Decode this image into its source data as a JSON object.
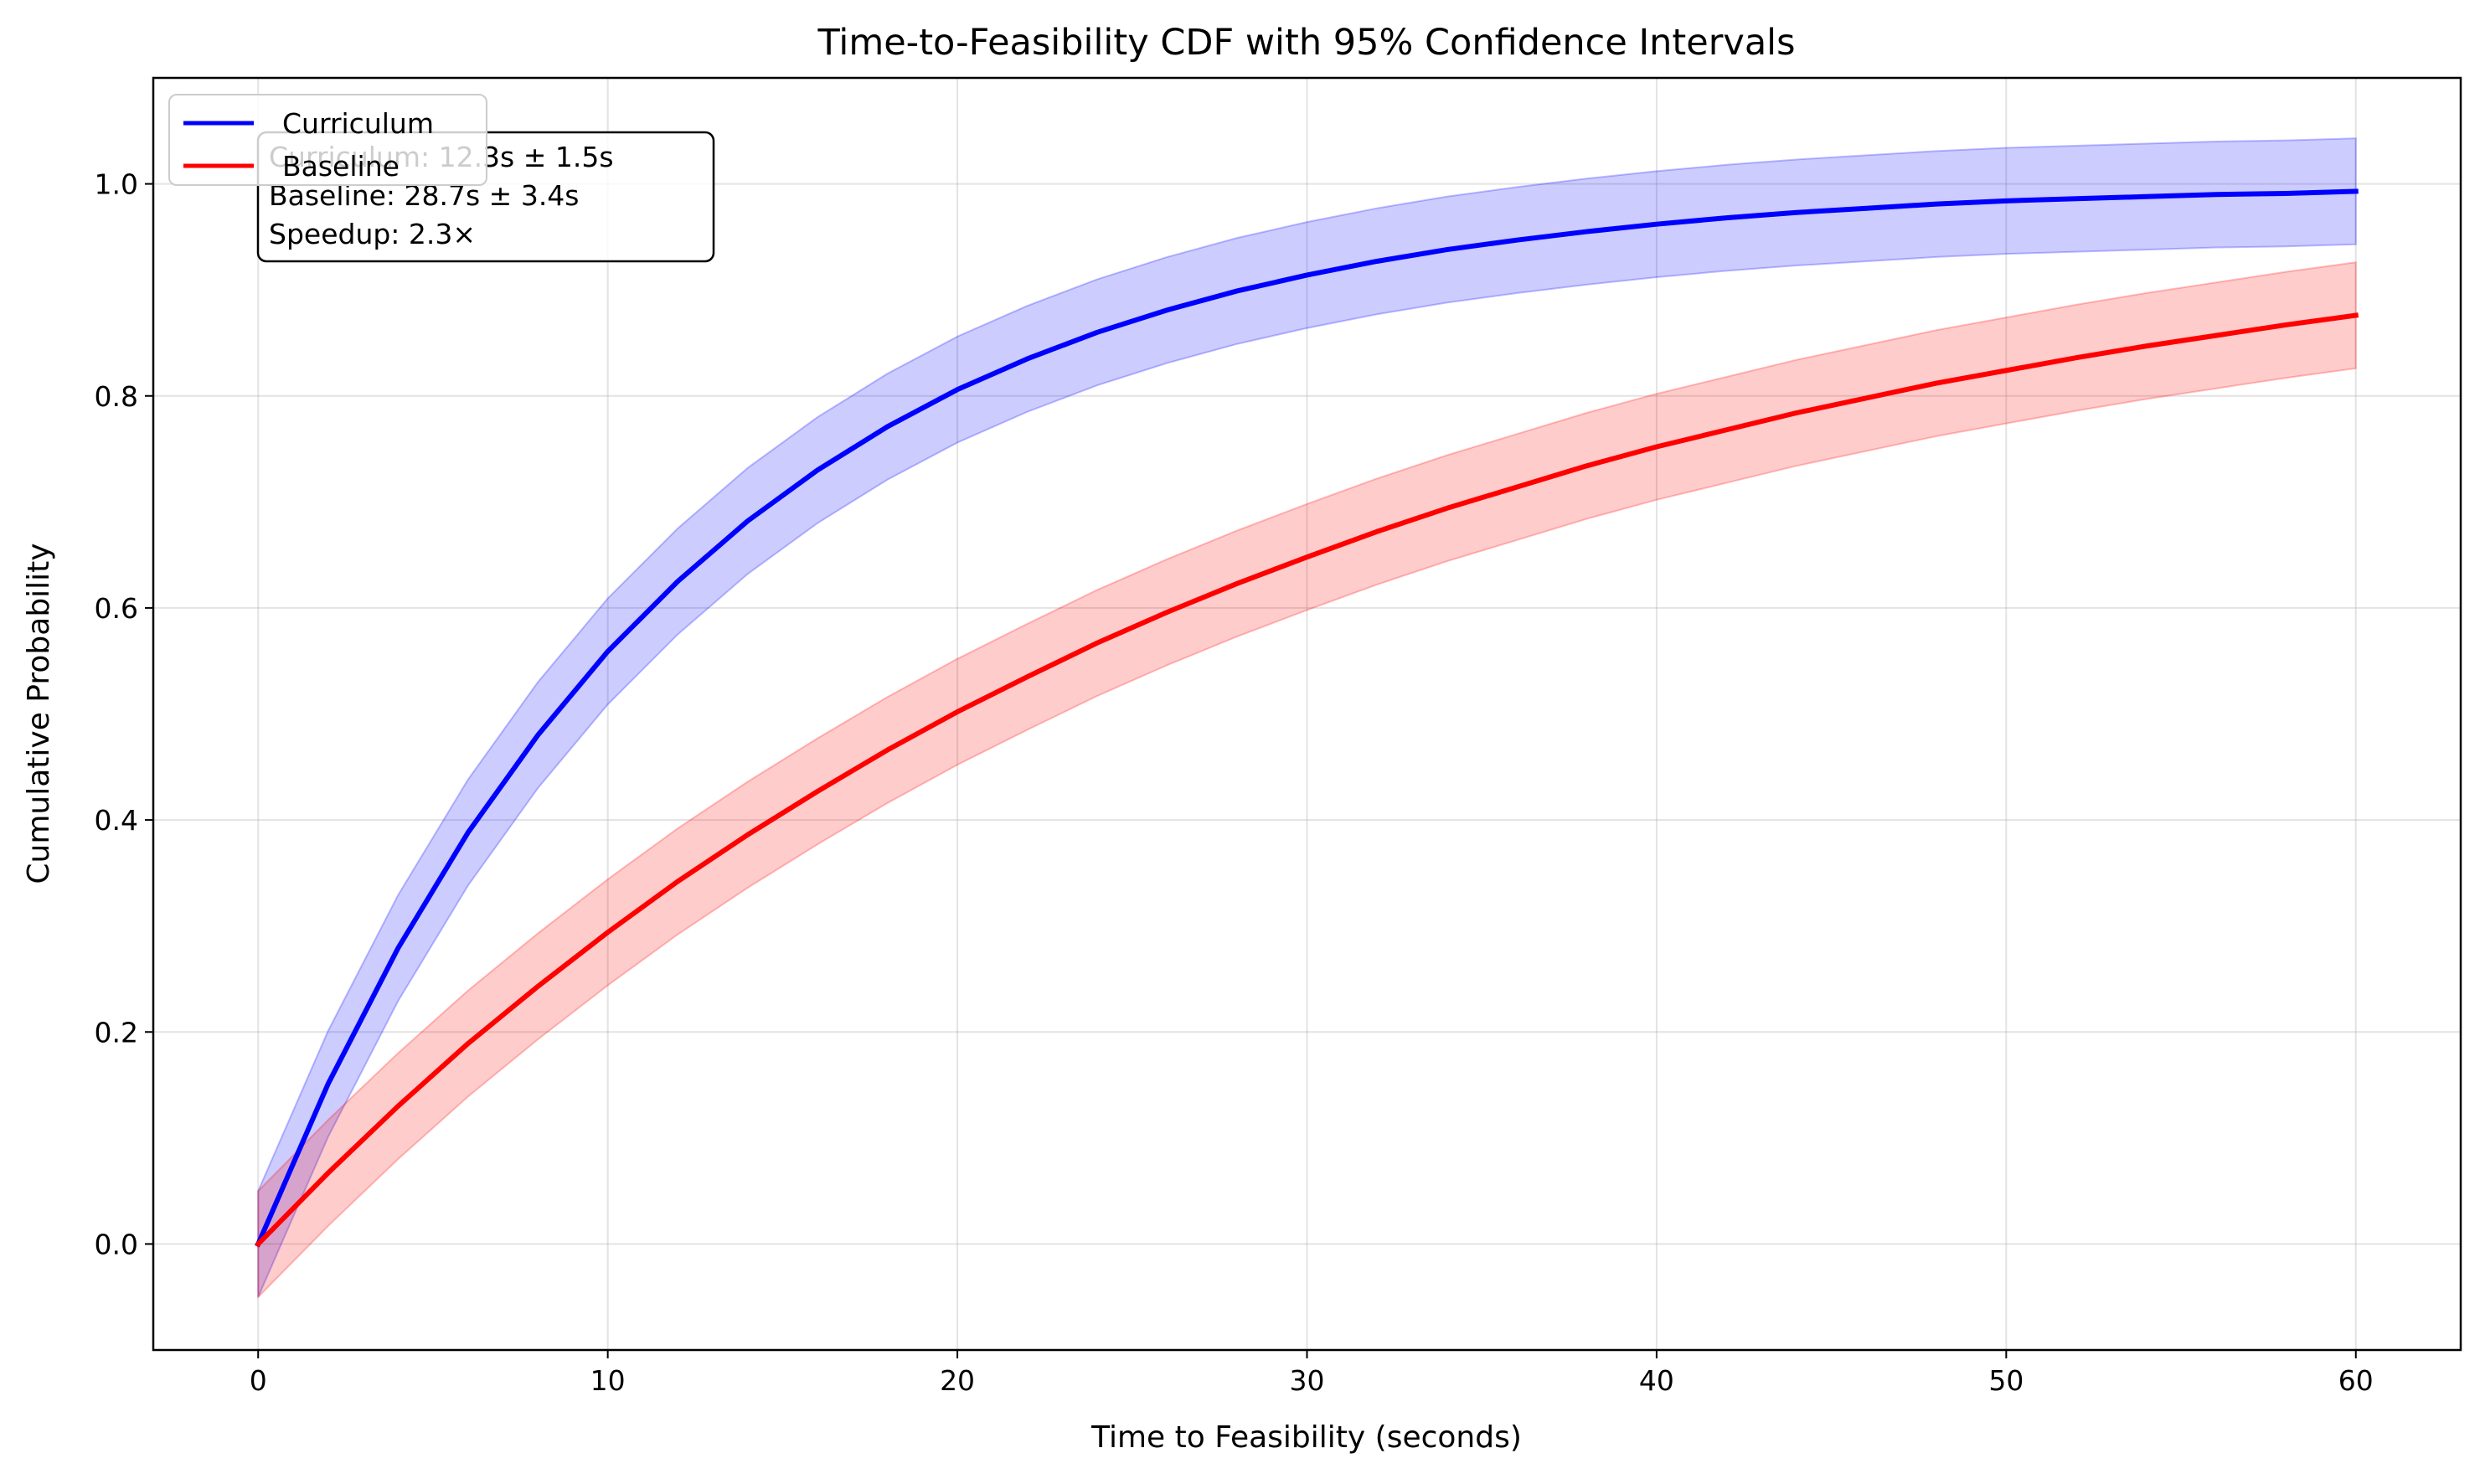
{
  "chart_data": {
    "type": "line",
    "title": "Time-to-Feasibility CDF with 95% Confidence Intervals",
    "xlabel": "Time to Feasibility (seconds)",
    "ylabel": "Cumulative Probability",
    "xlim": [
      -3,
      63
    ],
    "ylim": [
      -0.1,
      1.1
    ],
    "xticks": [
      0,
      10,
      20,
      30,
      40,
      50,
      60
    ],
    "xtick_labels": [
      "0",
      "10",
      "20",
      "30",
      "40",
      "50",
      "60"
    ],
    "yticks": [
      0.0,
      0.2,
      0.4,
      0.6,
      0.8,
      1.0
    ],
    "ytick_labels": [
      "0.0",
      "0.2",
      "0.4",
      "0.6",
      "0.8",
      "1.0"
    ],
    "grid": true,
    "legend_position": "top-left",
    "series": [
      {
        "name": "Curriculum",
        "color": "#0000ff",
        "band_color": "#0000ff",
        "ci_half_width": 0.05,
        "x": [
          0,
          2,
          4,
          6,
          8,
          10,
          12,
          14,
          16,
          18,
          20,
          22,
          24,
          26,
          28,
          30,
          32,
          34,
          36,
          38,
          40,
          42,
          44,
          46,
          48,
          50,
          52,
          54,
          56,
          58,
          60
        ],
        "y": [
          0.0,
          0.151,
          0.279,
          0.388,
          0.48,
          0.559,
          0.625,
          0.682,
          0.73,
          0.771,
          0.806,
          0.835,
          0.86,
          0.881,
          0.899,
          0.914,
          0.927,
          0.938,
          0.947,
          0.955,
          0.962,
          0.968,
          0.973,
          0.977,
          0.981,
          0.984,
          0.986,
          0.988,
          0.99,
          0.991,
          0.993
        ]
      },
      {
        "name": "Baseline",
        "color": "#ff0000",
        "band_color": "#ff0000",
        "ci_half_width": 0.05,
        "x": [
          0,
          2,
          4,
          6,
          8,
          10,
          12,
          14,
          16,
          18,
          20,
          22,
          24,
          26,
          28,
          30,
          32,
          34,
          36,
          38,
          40,
          42,
          44,
          46,
          48,
          50,
          52,
          54,
          56,
          58,
          60
        ],
        "y": [
          0.0,
          0.067,
          0.13,
          0.189,
          0.243,
          0.294,
          0.342,
          0.386,
          0.427,
          0.466,
          0.502,
          0.535,
          0.567,
          0.596,
          0.623,
          0.648,
          0.672,
          0.694,
          0.714,
          0.734,
          0.752,
          0.768,
          0.784,
          0.798,
          0.812,
          0.824,
          0.836,
          0.847,
          0.857,
          0.867,
          0.876
        ]
      }
    ],
    "annotation": {
      "lines": [
        "Curriculum: 12.3s ± 1.5s",
        "Baseline: 28.7s ± 3.4s",
        "Speedup: 2.3×"
      ]
    }
  }
}
